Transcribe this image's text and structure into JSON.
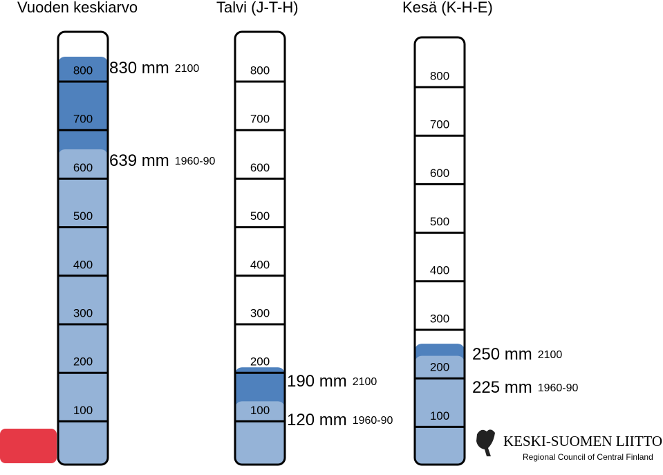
{
  "gauges": [
    {
      "title": "Vuoden keskiarvo",
      "ticks": [
        800,
        700,
        600,
        500,
        400,
        300,
        200,
        100
      ],
      "levels": [
        {
          "value": 830,
          "label": "830 mm",
          "period": "2100"
        },
        {
          "value": 639,
          "label": "639 mm",
          "period": "1960-90"
        }
      ]
    },
    {
      "title": "Talvi (J-T-H)",
      "ticks": [
        800,
        700,
        600,
        500,
        400,
        300,
        200,
        100
      ],
      "levels": [
        {
          "value": 190,
          "label": "190 mm",
          "period": "2100"
        },
        {
          "value": 120,
          "label": "120 mm",
          "period": "1960-90"
        }
      ]
    },
    {
      "title": "Kesä (K-H-E)",
      "ticks": [
        800,
        700,
        600,
        500,
        400,
        300,
        200,
        100
      ],
      "levels": [
        {
          "value": 250,
          "label": "250 mm",
          "period": "2100"
        },
        {
          "value": 225,
          "label": "225 mm",
          "period": "1960-90"
        }
      ]
    }
  ],
  "logo": {
    "name": "KESKI-SUOMEN LIITTO",
    "subtitle": "Regional Council of Central Finland"
  }
}
